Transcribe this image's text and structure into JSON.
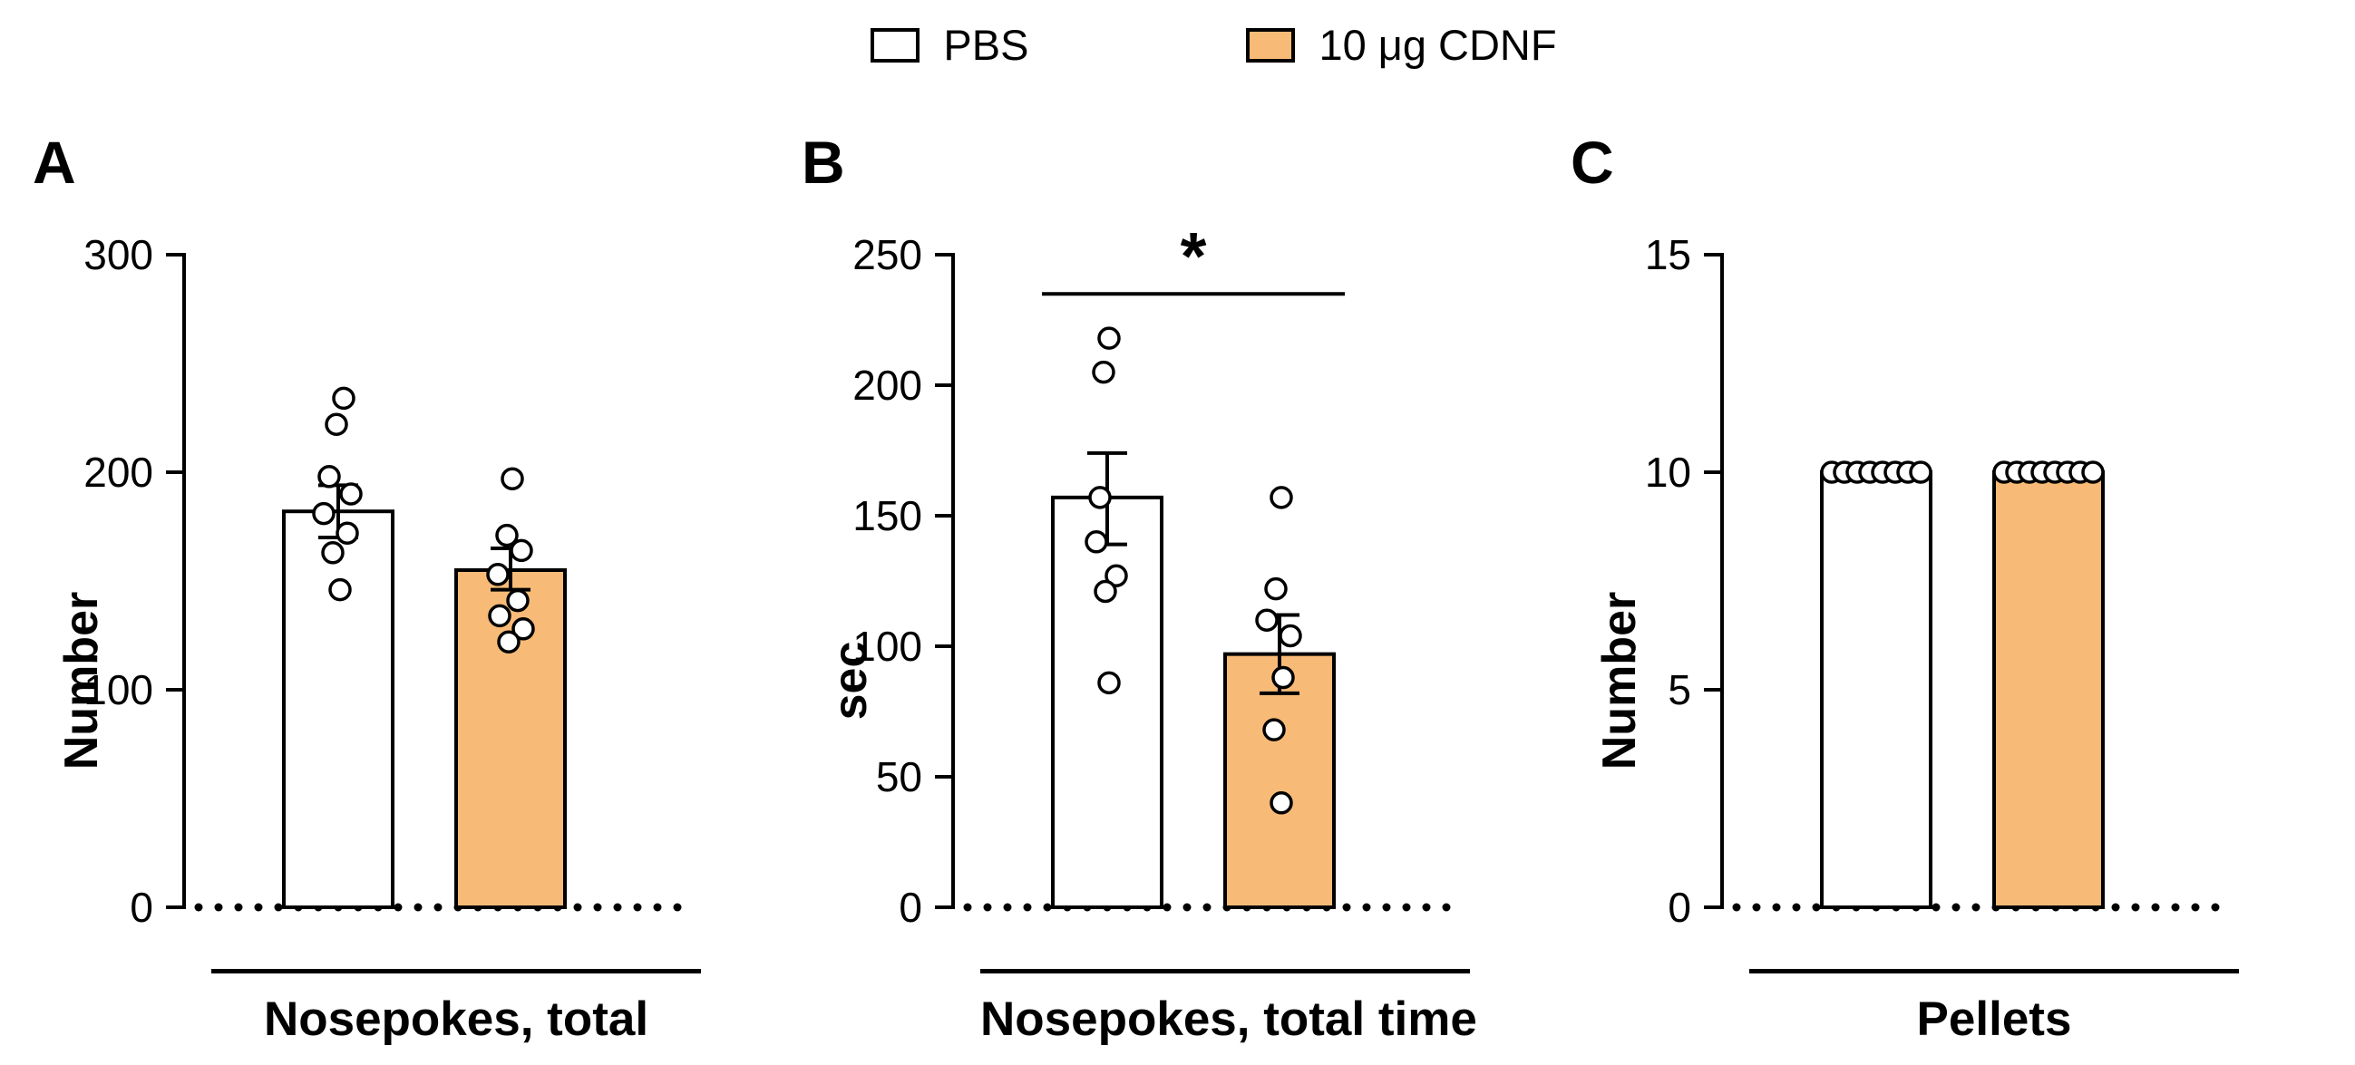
{
  "legend": {
    "items": [
      {
        "label": "PBS",
        "swatch_fill": "#FFFFFF"
      },
      {
        "label": "10 μg CDNF",
        "swatch_fill": "#F8BB77"
      }
    ]
  },
  "colors": {
    "pbs_fill": "#FFFFFF",
    "cdnf_fill": "#F8BB77",
    "stroke": "#000000"
  },
  "chart_data": [
    {
      "type": "bar",
      "panel": "A",
      "title": "Nosepokes, total",
      "xlabel": "Nosepokes, total",
      "ylabel": "Number",
      "ylim": [
        0,
        300
      ],
      "yticks": [
        0,
        100,
        200,
        300
      ],
      "grid": false,
      "categories": [
        "PBS",
        "10 μg CDNF"
      ],
      "series": [
        {
          "name": "PBS",
          "fill": "#FFFFFF",
          "mean": 182,
          "sem": [
            170,
            194
          ],
          "points": [
            234,
            222,
            198,
            190,
            181,
            172,
            163,
            146
          ],
          "jitter": [
            6,
            -2,
            -10,
            14,
            -16,
            10,
            -6,
            2
          ]
        },
        {
          "name": "10 μg CDNF",
          "fill": "#F8BB77",
          "mean": 155,
          "sem": [
            146,
            165
          ],
          "points": [
            197,
            171,
            164,
            153,
            141,
            134,
            128,
            122
          ],
          "jitter": [
            2,
            -4,
            12,
            -14,
            8,
            -12,
            14,
            -2
          ]
        }
      ],
      "significance": null
    },
    {
      "type": "bar",
      "panel": "B",
      "title": "Nosepokes, total time",
      "xlabel": "Nosepokes, total time",
      "ylabel": "sec",
      "ylim": [
        0,
        250
      ],
      "yticks": [
        0,
        50,
        100,
        150,
        200,
        250
      ],
      "grid": false,
      "categories": [
        "PBS",
        "10 μg CDNF"
      ],
      "series": [
        {
          "name": "PBS",
          "fill": "#FFFFFF",
          "mean": 157,
          "sem": [
            139,
            174
          ],
          "points": [
            218,
            205,
            157,
            140,
            127,
            121,
            86
          ],
          "jitter": [
            2,
            -4,
            -8,
            -12,
            10,
            -2,
            2
          ]
        },
        {
          "name": "10 μg CDNF",
          "fill": "#F8BB77",
          "mean": 97,
          "sem": [
            82,
            112
          ],
          "points": [
            157,
            122,
            110,
            104,
            88,
            68,
            40
          ],
          "jitter": [
            2,
            -4,
            -14,
            12,
            4,
            -6,
            2
          ]
        }
      ],
      "significance": {
        "label": "*",
        "y": 235
      }
    },
    {
      "type": "bar",
      "panel": "C",
      "title": "Pellets",
      "xlabel": "Pellets",
      "ylabel": "Number",
      "ylim": [
        0,
        15
      ],
      "yticks": [
        0,
        5,
        10,
        15
      ],
      "grid": false,
      "categories": [
        "PBS",
        "10 μg CDNF"
      ],
      "series": [
        {
          "name": "PBS",
          "fill": "#FFFFFF",
          "mean": 10,
          "sem": [
            10,
            10
          ],
          "points": [
            10,
            10,
            10,
            10,
            10,
            10,
            10,
            10
          ],
          "jitter": [
            -49,
            -35,
            -21,
            -7,
            7,
            21,
            35,
            49
          ]
        },
        {
          "name": "10 μg CDNF",
          "fill": "#F8BB77",
          "mean": 10,
          "sem": [
            10,
            10
          ],
          "points": [
            10,
            10,
            10,
            10,
            10,
            10,
            10,
            10
          ],
          "jitter": [
            -49,
            -35,
            -21,
            -7,
            7,
            21,
            35,
            49
          ]
        }
      ],
      "significance": null
    }
  ]
}
